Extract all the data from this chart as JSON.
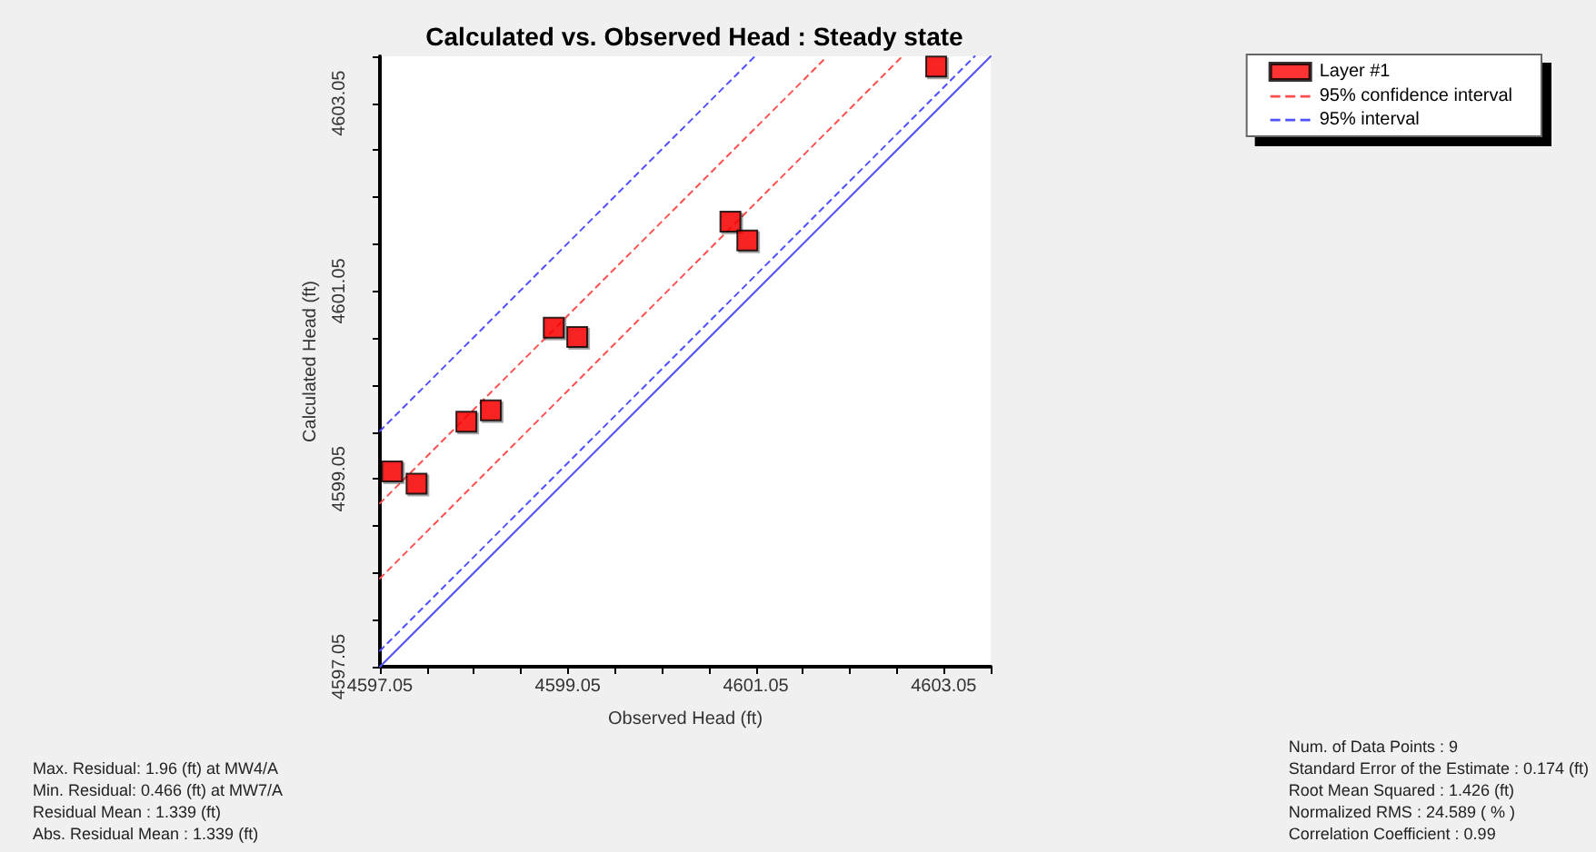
{
  "chart_data": {
    "type": "scatter",
    "title": "Calculated vs. Observed Head : Steady state",
    "xlabel": "Observed Head (ft)",
    "ylabel": "Calculated Head (ft)",
    "xlim": [
      4597.05,
      4603.55
    ],
    "ylim": [
      4597.05,
      4603.55
    ],
    "xticks": [
      4597.05,
      {
        "value": 4597.55,
        "label": null
      },
      {
        "value": 4598.05,
        "label": null
      },
      {
        "value": 4598.55,
        "label": null
      },
      4599.05,
      {
        "value": 4599.55,
        "label": null
      },
      {
        "value": 4600.05,
        "label": null
      },
      {
        "value": 4600.55,
        "label": null
      },
      4601.05,
      {
        "value": 4601.55,
        "label": null
      },
      {
        "value": 4602.05,
        "label": null
      },
      {
        "value": 4602.55,
        "label": null
      },
      4603.05,
      {
        "value": 4603.55,
        "label": null
      }
    ],
    "yticks": [
      4597.05,
      {
        "value": 4597.55,
        "label": null
      },
      {
        "value": 4598.05,
        "label": null
      },
      {
        "value": 4598.55,
        "label": null
      },
      4599.05,
      {
        "value": 4599.55,
        "label": null
      },
      {
        "value": 4600.05,
        "label": null
      },
      {
        "value": 4600.55,
        "label": null
      },
      4601.05,
      {
        "value": 4601.55,
        "label": null
      },
      {
        "value": 4602.05,
        "label": null
      },
      {
        "value": 4602.55,
        "label": null
      },
      4603.05,
      {
        "value": 4603.55,
        "label": null
      }
    ],
    "grid": false,
    "legend": "top right",
    "marker": "square",
    "series": [
      {
        "name": "Layer #1",
        "color": "#ff0000",
        "x": [
          4597.18,
          4597.44,
          4597.97,
          4598.23,
          4598.9,
          4599.15,
          4600.78,
          4600.96,
          4602.97
        ],
        "values": [
          4599.13,
          4599.0,
          4599.66,
          4599.78,
          4600.66,
          4600.56,
          4601.79,
          4601.59,
          4603.44
        ]
      },
      {
        "name": "95% confidence interval",
        "type": "line",
        "marker": "none",
        "line_style": "dashed",
        "color": "#ff5050",
        "x": [
          4597.05,
          4601.81,
          null,
          4597.05,
          4602.61
        ],
        "values": [
          4598.79,
          4603.55,
          null,
          4597.99,
          4603.55
        ]
      },
      {
        "name": "95% interval",
        "type": "line",
        "marker": "none",
        "line_style": "dashed",
        "color": "#5050ff",
        "x": [
          4597.05,
          4601.04,
          null,
          4597.05,
          4603.38
        ],
        "values": [
          4599.56,
          4603.55,
          null,
          4597.22,
          4603.55
        ]
      },
      {
        "type": "line",
        "marker": "none",
        "line_style": "solid",
        "color": "#5050ff",
        "x": [
          4597.05,
          4603.55
        ],
        "values": [
          4597.05,
          4603.55
        ]
      }
    ],
    "annotations": [
      "Max. Residual: 1.96 (ft) at MW4/A",
      "Min. Residual: 0.466 (ft) at MW7/A",
      "Residual Mean : 1.339 (ft)",
      "Abs. Residual Mean : 1.339 (ft)",
      "Num. of Data Points : 9",
      "Standard Error of the Estimate : 0.174 (ft)",
      "Root Mean Squared : 1.426 (ft)",
      "Normalized RMS : 24.589 ( % )",
      "Correlation Coefficient : 0.99"
    ]
  }
}
